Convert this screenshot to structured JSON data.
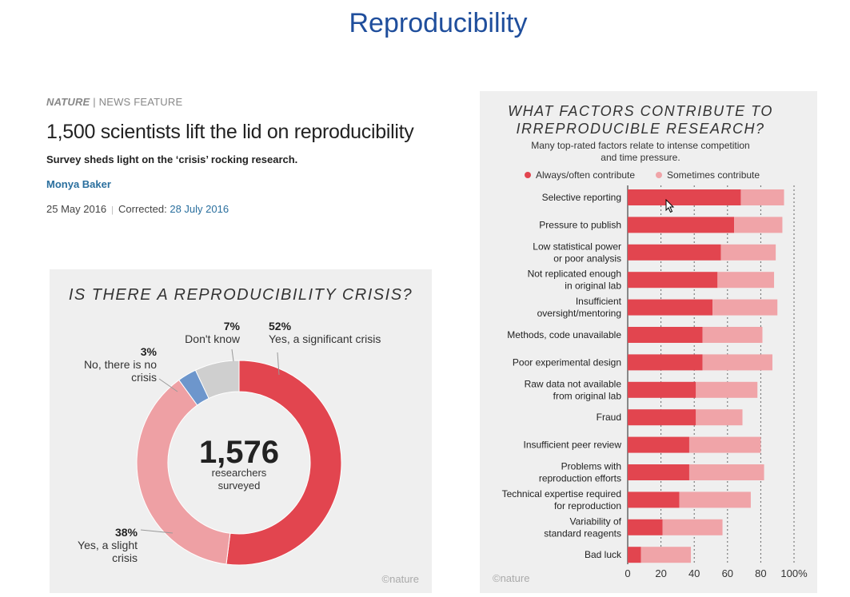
{
  "slide": {
    "title": "Reproducibility"
  },
  "article": {
    "publication": "NATURE",
    "separator": "|",
    "section": "NEWS FEATURE",
    "headline": "1,500 scientists lift the lid on reproducibility",
    "standfirst": "Survey sheds light on the ‘crisis’ rocking research.",
    "author": "Monya Baker",
    "date": "25 May 2016",
    "corrected_label": "Corrected:",
    "corrected_date": "28 July 2016"
  },
  "chart_data": [
    {
      "type": "pie",
      "title": "IS THERE A REPRODUCIBILITY CRISIS?",
      "center_value": "1,576",
      "center_label_line1": "researchers",
      "center_label_line2": "surveyed",
      "watermark": "©nature",
      "slices": [
        {
          "pct": "52%",
          "value": 52,
          "label_lines": [
            "Yes, a significant crisis"
          ],
          "color": "#e2454f"
        },
        {
          "pct": "38%",
          "value": 38,
          "label_lines": [
            "Yes, a slight",
            "crisis"
          ],
          "color": "#eea0a4"
        },
        {
          "pct": "3%",
          "value": 3,
          "label_lines": [
            "No, there is no",
            "crisis"
          ],
          "color": "#6d96cc"
        },
        {
          "pct": "7%",
          "value": 7,
          "label_lines": [
            "Don't know"
          ],
          "color": "#cfcfcf"
        }
      ]
    },
    {
      "type": "bar",
      "orientation": "horizontal",
      "stacked": true,
      "title_line1": "WHAT FACTORS CONTRIBUTE TO",
      "title_line2": "IRREPRODUCIBLE RESEARCH?",
      "subtitle_line1": "Many top-rated factors relate to intense competition",
      "subtitle_line2": "and time pressure.",
      "watermark": "©nature",
      "legend_position": "top",
      "xlim": [
        0,
        100
      ],
      "xticks": [
        "0",
        "20",
        "40",
        "60",
        "80",
        "100%"
      ],
      "series": [
        {
          "name": "Always/often contribute",
          "color": "#e2454f"
        },
        {
          "name": "Sometimes contribute",
          "color": "#f0a4a8"
        }
      ],
      "categories": [
        {
          "lines": [
            "Selective reporting"
          ],
          "always": 68,
          "sometimes": 26
        },
        {
          "lines": [
            "Pressure to publish"
          ],
          "always": 64,
          "sometimes": 29
        },
        {
          "lines": [
            "Low statistical power",
            "or poor analysis"
          ],
          "always": 56,
          "sometimes": 33
        },
        {
          "lines": [
            "Not replicated enough",
            "in original lab"
          ],
          "always": 54,
          "sometimes": 34
        },
        {
          "lines": [
            "Insufficient",
            "oversight/mentoring"
          ],
          "always": 51,
          "sometimes": 39
        },
        {
          "lines": [
            "Methods, code unavailable"
          ],
          "always": 45,
          "sometimes": 36
        },
        {
          "lines": [
            "Poor experimental design"
          ],
          "always": 45,
          "sometimes": 42
        },
        {
          "lines": [
            "Raw data not available",
            "from original lab"
          ],
          "always": 41,
          "sometimes": 37
        },
        {
          "lines": [
            "Fraud"
          ],
          "always": 41,
          "sometimes": 28
        },
        {
          "lines": [
            "Insufficient peer review"
          ],
          "always": 37,
          "sometimes": 43
        },
        {
          "lines": [
            "Problems with",
            "reproduction efforts"
          ],
          "always": 37,
          "sometimes": 45
        },
        {
          "lines": [
            "Technical expertise required",
            "for reproduction"
          ],
          "always": 31,
          "sometimes": 43
        },
        {
          "lines": [
            "Variability of",
            "standard reagents"
          ],
          "always": 21,
          "sometimes": 36
        },
        {
          "lines": [
            "Bad luck"
          ],
          "always": 8,
          "sometimes": 30
        }
      ]
    }
  ]
}
